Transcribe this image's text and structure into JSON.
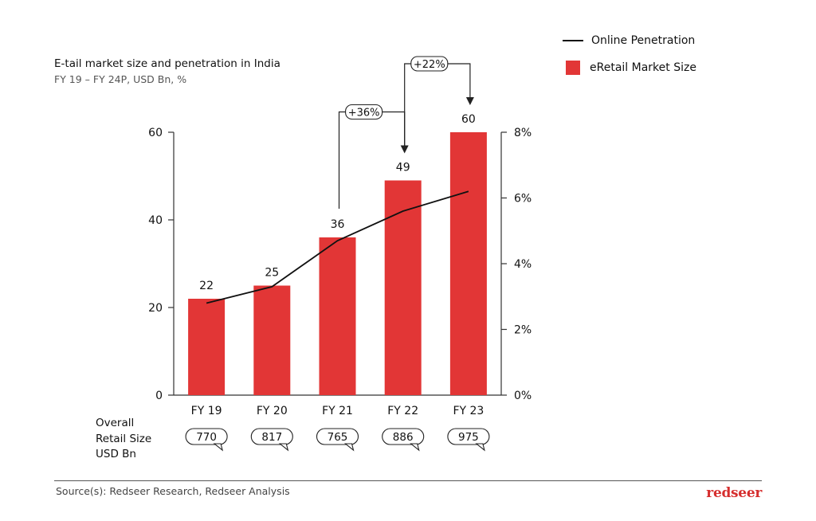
{
  "chart_data": {
    "type": "bar",
    "title": "E-tail market size and penetration in India",
    "subtitle": "FY 19 – FY 24P, USD Bn, %",
    "categories": [
      "FY 19",
      "FY 20",
      "FY 21",
      "FY 22",
      "FY 23"
    ],
    "series": [
      {
        "name": "eRetail Market Size",
        "axis": "left",
        "type": "bar",
        "values": [
          22,
          25,
          36,
          49,
          60
        ],
        "value_labels": [
          "22",
          "25",
          "36",
          "49",
          "60"
        ]
      },
      {
        "name": "Online Penetration",
        "axis": "right",
        "type": "line",
        "values": [
          2.8,
          3.3,
          4.7,
          5.6,
          6.2
        ]
      }
    ],
    "y_left": {
      "range": [
        0,
        60
      ],
      "ticks": [
        "0",
        "20",
        "40",
        "60"
      ],
      "tick_values": [
        0,
        20,
        40,
        60
      ]
    },
    "y_right": {
      "range": [
        0,
        8
      ],
      "ticks": [
        "0%",
        "2%",
        "4%",
        "6%",
        "8%"
      ],
      "tick_values": [
        0,
        2,
        4,
        6,
        8
      ]
    },
    "growth_callouts": [
      {
        "label": "+36%",
        "from": "FY 21",
        "to": "FY 22"
      },
      {
        "label": "+22%",
        "from": "FY 22",
        "to": "FY 23"
      }
    ],
    "overall_retail_size": {
      "label": "Overall Retail Size USD Bn",
      "values": [
        "770",
        "817",
        "765",
        "886",
        "975"
      ]
    },
    "legend": [
      "Online Penetration",
      "eRetail Market Size"
    ],
    "legend_position": "top-right"
  },
  "legend": {
    "line_label": "Online Penetration",
    "bar_label": "eRetail Market Size"
  },
  "footer": {
    "source": "Source(s): Redseer Research, Redseer Analysis",
    "logo_text": "redseer"
  },
  "colors": {
    "bar": "#e23636",
    "line": "#111111",
    "logo": "#d62e2e"
  }
}
